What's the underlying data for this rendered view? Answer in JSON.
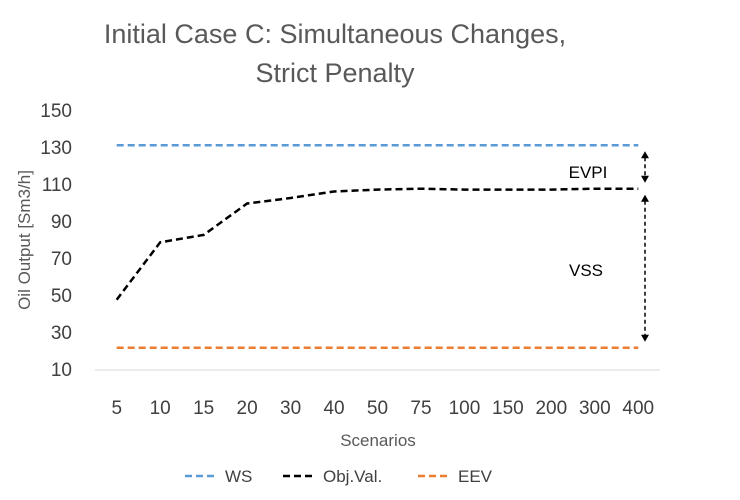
{
  "chart_data": {
    "type": "line",
    "title_lines": [
      "Initial Case C: Simultaneous Changes,",
      "Strict Penalty"
    ],
    "xlabel": "Scenarios",
    "ylabel": "Oil Output [Sm3/h]",
    "categories": [
      "5",
      "10",
      "15",
      "20",
      "30",
      "40",
      "50",
      "75",
      "100",
      "150",
      "200",
      "300",
      "400"
    ],
    "ylim": [
      10,
      150
    ],
    "yticks": [
      10,
      30,
      50,
      70,
      90,
      110,
      130,
      150
    ],
    "grid": false,
    "legend_position": "bottom",
    "series": [
      {
        "name": "WS",
        "color": "#5B9BD5",
        "dash": true,
        "values": [
          131.5,
          131.5,
          131.5,
          131.5,
          131.5,
          131.5,
          131.5,
          131.5,
          131.5,
          131.5,
          131.5,
          131.5,
          131.5
        ]
      },
      {
        "name": "Obj.Val.",
        "color": "#000000",
        "dash": true,
        "values": [
          48,
          79,
          83,
          100,
          103,
          106.5,
          107.5,
          108,
          107.5,
          107.5,
          107.5,
          108,
          108
        ]
      },
      {
        "name": "EEV",
        "color": "#ED7D31",
        "dash": true,
        "values": [
          22,
          22,
          22,
          22,
          22,
          22,
          22,
          22,
          22,
          22,
          22,
          22,
          22
        ]
      }
    ],
    "annotations": [
      {
        "text": "EVPI",
        "from": 131.5,
        "to": 108
      },
      {
        "text": "VSS",
        "from": 108,
        "to": 22
      }
    ]
  }
}
